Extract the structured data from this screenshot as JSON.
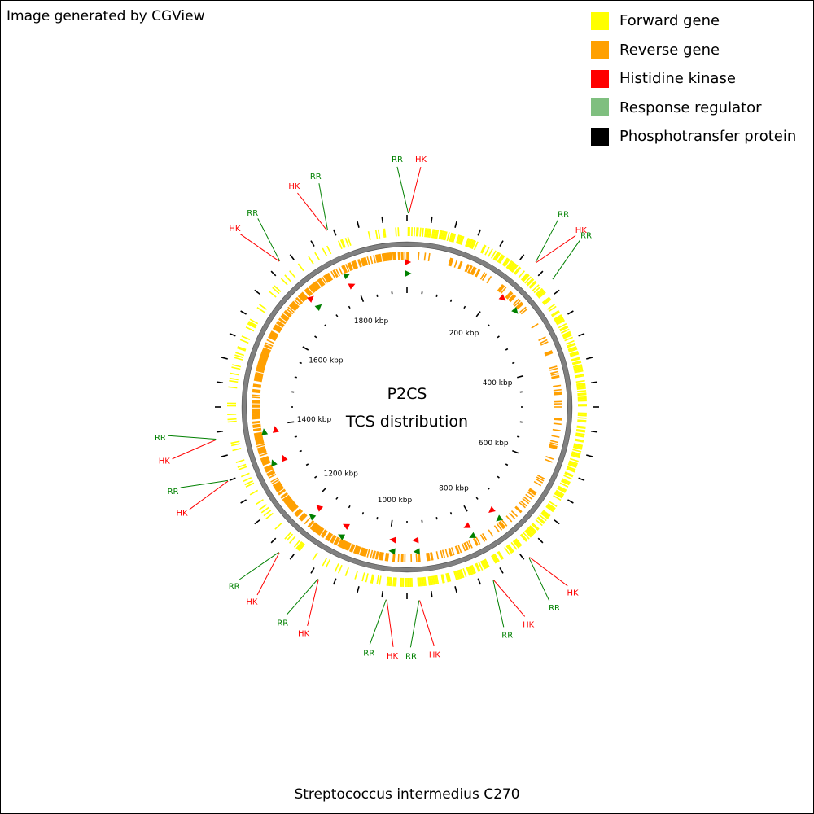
{
  "credit": "Image generated by CGView",
  "organism": "Streptococcus intermedius C270",
  "center": {
    "line1": "P2CS",
    "line2": "TCS distribution"
  },
  "colors": {
    "forward": "#ffff00",
    "reverse": "#ffa000",
    "hk": "#ff0000",
    "rr": "#7fbf7f",
    "rr_label": "#008000",
    "phospho": "#000000",
    "backbone": "#808080"
  },
  "legend": [
    {
      "label": "Forward gene",
      "color": "#ffff00"
    },
    {
      "label": "Reverse gene",
      "color": "#ffa000"
    },
    {
      "label": "Histidine kinase",
      "color": "#ff0000"
    },
    {
      "label": "Response regulator",
      "color": "#7fbf7f"
    },
    {
      "label": "Phosphotransfer protein",
      "color": "#000000"
    }
  ],
  "genome_kbp": 1920,
  "tick_labels": [
    {
      "label": "200 kbp",
      "kbp": 200
    },
    {
      "label": "400 kbp",
      "kbp": 400
    },
    {
      "label": "600 kbp",
      "kbp": 600
    },
    {
      "label": "800 kbp",
      "kbp": 800
    },
    {
      "label": "1000 kbp",
      "kbp": 1000
    },
    {
      "label": "1200 kbp",
      "kbp": 1200
    },
    {
      "label": "1400 kbp",
      "kbp": 1400
    },
    {
      "label": "1600 kbp",
      "kbp": 1600
    },
    {
      "label": "1800 kbp",
      "kbp": 1800
    }
  ],
  "annotations": [
    {
      "text": "RR",
      "type": "rr",
      "kbp": 2
    },
    {
      "text": "HK",
      "type": "hk",
      "kbp": 3
    },
    {
      "text": "RR",
      "type": "rr",
      "kbp": 222
    },
    {
      "text": "HK",
      "type": "hk",
      "kbp": 223
    },
    {
      "text": "RR",
      "type": "rr",
      "kbp": 260
    },
    {
      "text": "HK",
      "type": "hk",
      "kbp": 751
    },
    {
      "text": "RR",
      "type": "rr",
      "kbp": 752
    },
    {
      "text": "HK",
      "type": "hk",
      "kbp": 818
    },
    {
      "text": "RR",
      "type": "rr",
      "kbp": 819
    },
    {
      "text": "HK",
      "type": "hk",
      "kbp": 940
    },
    {
      "text": "RR",
      "type": "rr",
      "kbp": 941
    },
    {
      "text": "HK",
      "type": "hk",
      "kbp": 992
    },
    {
      "text": "RR",
      "type": "rr",
      "kbp": 993
    },
    {
      "text": "HK",
      "type": "hk",
      "kbp": 1105
    },
    {
      "text": "RR",
      "type": "rr",
      "kbp": 1106
    },
    {
      "text": "HK",
      "type": "hk",
      "kbp": 1180
    },
    {
      "text": "RR",
      "type": "rr",
      "kbp": 1181
    },
    {
      "text": "HK",
      "type": "hk",
      "kbp": 1320
    },
    {
      "text": "RR",
      "type": "rr",
      "kbp": 1321
    },
    {
      "text": "HK",
      "type": "hk",
      "kbp": 1388
    },
    {
      "text": "RR",
      "type": "rr",
      "kbp": 1389
    },
    {
      "text": "HK",
      "type": "hk",
      "kbp": 1700
    },
    {
      "text": "RR",
      "type": "rr",
      "kbp": 1701
    },
    {
      "text": "HK",
      "type": "hk",
      "kbp": 1790
    },
    {
      "text": "RR",
      "type": "rr",
      "kbp": 1791
    }
  ],
  "tcs_markers": [
    {
      "type": "hk",
      "kbp": 2
    },
    {
      "type": "rr",
      "kbp": 3
    },
    {
      "type": "hk",
      "kbp": 222
    },
    {
      "type": "rr",
      "kbp": 260
    },
    {
      "type": "rr",
      "kbp": 751
    },
    {
      "type": "hk",
      "kbp": 752
    },
    {
      "type": "rr",
      "kbp": 818
    },
    {
      "type": "hk",
      "kbp": 819
    },
    {
      "type": "rr",
      "kbp": 940
    },
    {
      "type": "hk",
      "kbp": 941
    },
    {
      "type": "rr",
      "kbp": 992
    },
    {
      "type": "hk",
      "kbp": 993
    },
    {
      "type": "rr",
      "kbp": 1105
    },
    {
      "type": "hk",
      "kbp": 1106
    },
    {
      "type": "rr",
      "kbp": 1180
    },
    {
      "type": "hk",
      "kbp": 1181
    },
    {
      "type": "rr",
      "kbp": 1320
    },
    {
      "type": "hk",
      "kbp": 1321
    },
    {
      "type": "rr",
      "kbp": 1388
    },
    {
      "type": "hk",
      "kbp": 1389
    },
    {
      "type": "hk",
      "kbp": 1700
    },
    {
      "type": "rr",
      "kbp": 1701
    },
    {
      "type": "rr",
      "kbp": 1790
    },
    {
      "type": "hk",
      "kbp": 1791
    }
  ]
}
